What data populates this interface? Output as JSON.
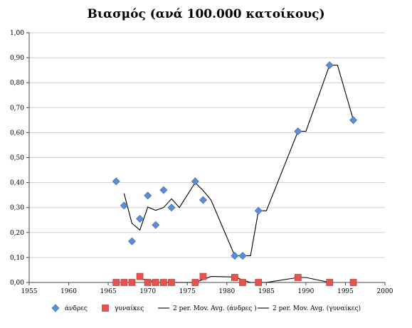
{
  "chart_data": {
    "type": "scatter",
    "title": "Βιασμός (ανά 100.000 κατοίκους)",
    "xlabel": "",
    "ylabel": "",
    "xlim": [
      1955,
      2000
    ],
    "ylim": [
      0,
      1.0
    ],
    "x_ticks": [
      "1955",
      "1960",
      "1965",
      "1970",
      "1975",
      "1980",
      "1985",
      "1990",
      "1995",
      "2000"
    ],
    "y_ticks": [
      "0,00",
      "0,10",
      "0,20",
      "0,30",
      "0,40",
      "0,50",
      "0,60",
      "0,70",
      "0,80",
      "0,90",
      "1,00"
    ],
    "grid": "horizontal",
    "legend_position": "bottom",
    "series": [
      {
        "name": "άνδρες",
        "kind": "scatter",
        "marker": "diamond",
        "color": "#5B8ED6",
        "points": [
          [
            1966,
            0.405
          ],
          [
            1967,
            0.308
          ],
          [
            1968,
            0.165
          ],
          [
            1969,
            0.255
          ],
          [
            1970,
            0.348
          ],
          [
            1971,
            0.23
          ],
          [
            1972,
            0.37
          ],
          [
            1973,
            0.3
          ],
          [
            1976,
            0.405
          ],
          [
            1977,
            0.33
          ],
          [
            1981,
            0.107
          ],
          [
            1982,
            0.107
          ],
          [
            1984,
            0.287
          ],
          [
            1989,
            0.605
          ],
          [
            1993,
            0.87
          ],
          [
            1996,
            0.65
          ]
        ]
      },
      {
        "name": "γυναίκες",
        "kind": "scatter",
        "marker": "square",
        "color": "#E8534F",
        "points": [
          [
            1966,
            0.0
          ],
          [
            1967,
            0.0
          ],
          [
            1968,
            0.0
          ],
          [
            1969,
            0.024
          ],
          [
            1970,
            0.0
          ],
          [
            1971,
            0.0
          ],
          [
            1972,
            0.0
          ],
          [
            1973,
            0.0
          ],
          [
            1976,
            0.0
          ],
          [
            1977,
            0.024
          ],
          [
            1981,
            0.02
          ],
          [
            1982,
            0.0
          ],
          [
            1984,
            0.0
          ],
          [
            1989,
            0.02
          ],
          [
            1993,
            0.0
          ],
          [
            1996,
            0.0
          ]
        ]
      },
      {
        "name": "2 per. Mov. Avg. (άνδρες )",
        "kind": "line",
        "color": "#000000",
        "points": [
          [
            1967,
            0.357
          ],
          [
            1968,
            0.237
          ],
          [
            1969,
            0.21
          ],
          [
            1970,
            0.302
          ],
          [
            1971,
            0.289
          ],
          [
            1972,
            0.3
          ],
          [
            1973,
            0.335
          ],
          [
            1974,
            0.3
          ],
          [
            1976,
            0.4
          ],
          [
            1977,
            0.368
          ],
          [
            1978,
            0.33
          ],
          [
            1981,
            0.107
          ],
          [
            1982,
            0.107
          ],
          [
            1983,
            0.107
          ],
          [
            1984,
            0.287
          ],
          [
            1985,
            0.287
          ],
          [
            1989,
            0.605
          ],
          [
            1990,
            0.605
          ],
          [
            1993,
            0.87
          ],
          [
            1994,
            0.87
          ],
          [
            1996,
            0.65
          ]
        ]
      },
      {
        "name": "2 per. Mov. Avg. (γυναίκες)",
        "kind": "line",
        "color": "#000000",
        "points": [
          [
            1969,
            0.012
          ],
          [
            1970,
            0.012
          ],
          [
            1971,
            0.0
          ],
          [
            1976,
            0.0
          ],
          [
            1977,
            0.012
          ],
          [
            1978,
            0.024
          ],
          [
            1981,
            0.022
          ],
          [
            1982,
            0.01
          ],
          [
            1983,
            0.0
          ],
          [
            1985,
            0.0
          ],
          [
            1989,
            0.02
          ],
          [
            1990,
            0.02
          ],
          [
            1993,
            0.0
          ]
        ]
      }
    ]
  }
}
